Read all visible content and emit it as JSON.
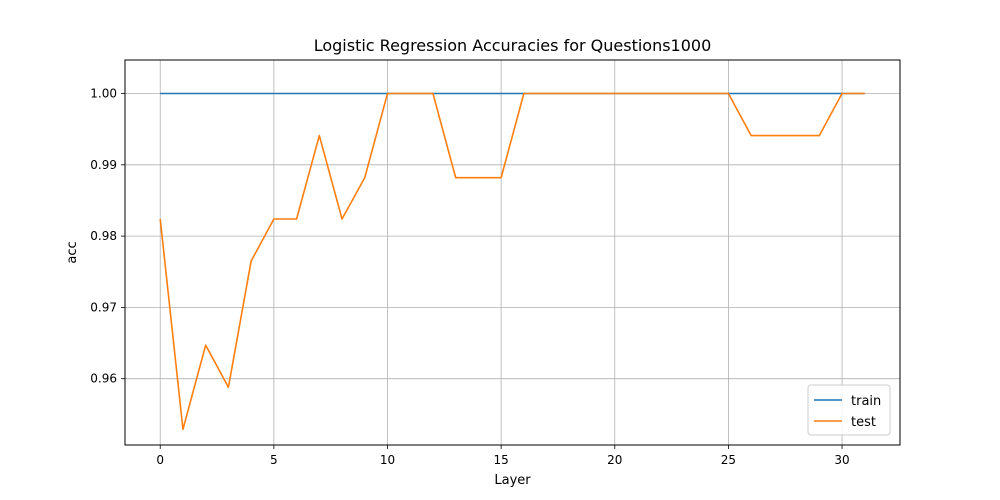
{
  "chart_data": {
    "type": "line",
    "title": "Logistic Regression Accuracies for Questions1000",
    "xlabel": "Layer",
    "ylabel": "acc",
    "xlim": [
      -1.55,
      32.55
    ],
    "ylim": [
      0.9507,
      1.0047
    ],
    "xticks": [
      0,
      5,
      10,
      15,
      20,
      25,
      30
    ],
    "xtick_labels": [
      "0",
      "5",
      "10",
      "15",
      "20",
      "25",
      "30"
    ],
    "yticks": [
      0.96,
      0.97,
      0.98,
      0.99,
      1.0
    ],
    "ytick_labels": [
      "0.96",
      "0.97",
      "0.98",
      "0.99",
      "1.00"
    ],
    "grid": true,
    "legend_position": "lower-right",
    "x": [
      0,
      1,
      2,
      3,
      4,
      5,
      6,
      7,
      8,
      9,
      10,
      11,
      12,
      13,
      14,
      15,
      16,
      17,
      18,
      19,
      20,
      21,
      22,
      23,
      24,
      25,
      26,
      27,
      28,
      29,
      30,
      31
    ],
    "series": [
      {
        "name": "train",
        "color": "#1f77b4",
        "values": [
          1.0,
          1.0,
          1.0,
          1.0,
          1.0,
          1.0,
          1.0,
          1.0,
          1.0,
          1.0,
          1.0,
          1.0,
          1.0,
          1.0,
          1.0,
          1.0,
          1.0,
          1.0,
          1.0,
          1.0,
          1.0,
          1.0,
          1.0,
          1.0,
          1.0,
          1.0,
          1.0,
          1.0,
          1.0,
          1.0,
          1.0,
          1.0
        ]
      },
      {
        "name": "test",
        "color": "#ff7f0e",
        "values": [
          0.9824,
          0.9529,
          0.9647,
          0.9588,
          0.9765,
          0.9824,
          0.9824,
          0.9941,
          0.9824,
          0.9882,
          1.0,
          1.0,
          1.0,
          0.9882,
          0.9882,
          0.9882,
          1.0,
          1.0,
          1.0,
          1.0,
          1.0,
          1.0,
          1.0,
          1.0,
          1.0,
          1.0,
          0.9941,
          0.9941,
          0.9941,
          0.9941,
          1.0,
          1.0
        ]
      }
    ]
  }
}
